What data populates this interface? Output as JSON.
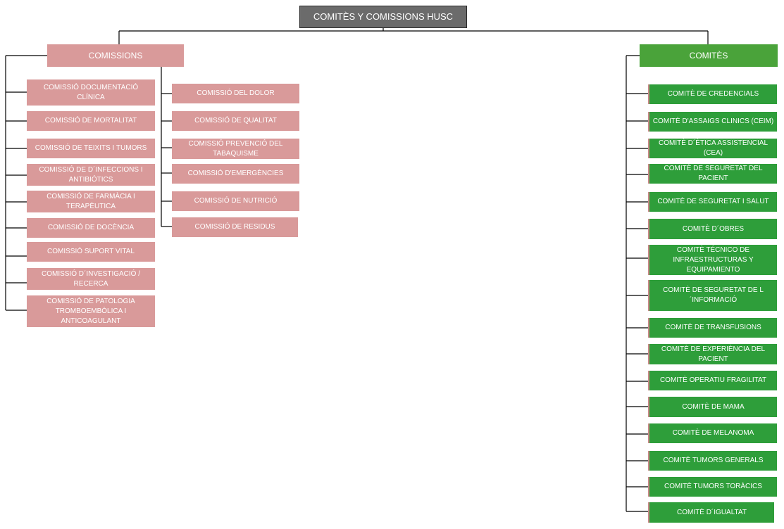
{
  "title": "COMITÈS Y COMISSIONS HUSC",
  "comissions": {
    "label": "COMISSIONS",
    "col1": [
      "COMISSIÓ DOCUMENTACIÓ CLÍNICA",
      "COMISSIÓ DE MORTALITAT",
      "COMISSIÓ DE TEIXITS I TUMORS",
      "COMISSIÓ DE D´INFECCIONS I ANTIBIÓTICS",
      "COMISSIÓ DE FARMÀCIA I TERAPÈUTICA",
      "COMISSIÓ DE DOCÈNCIA",
      "COMISSIÓ SUPORT VITAL",
      "COMISSIÓ D´INVESTIGACIÓ / RECERCA",
      "COMISSIÓ DE PATOLOGIA TROMBOEMBÒLICA I ANTICOAGULANT"
    ],
    "col2": [
      "COMISSIÓ DEL DOLOR",
      "COMISSIÓ DE QUALITAT",
      "COMISSIÓ PREVENCIÓ DEL TABAQUISME",
      "COMISSIÓ D'EMERGÈNCIES",
      "COMISSIÓ DE NUTRICIÓ",
      "COMISSIÓ DE RESIDUS"
    ]
  },
  "comites": {
    "label": "COMITÈS",
    "items": [
      "COMITÈ DE CREDENCIALS",
      "COMITÈ D'ASSAIGS CLINICS (CEIM)",
      "COMITÈ D´ÈTICA ASSISTENCIAL (CEA)",
      "COMITÈ DE SEGURETAT DEL PACIENT",
      "COMITÈ DE SEGURETAT I SALUT",
      "COMITÈ D´OBRES",
      "COMITÈ TÉCNICO DE INFRAESTRUCTURAS Y EQUIPAMIENTO",
      "COMITÈ DE SEGURETAT DE L´INFORMACIÓ",
      "COMITÈ DE TRANSFUSIONS",
      "COMITÈ DE EXPERIÈNCIA DEL PACIENT",
      "COMITÈ OPERATIU FRAGILITAT",
      "COMITÈ DE MAMA",
      "COMITÈ DE MELANOMA",
      "COMITÈ TUMORS GENERALS",
      "COMITÈ TUMORS TORÀCICS",
      "COMITÈ D´IGUALTAT"
    ]
  },
  "colors": {
    "root": "#6b6b6b",
    "comissions": "#d99a9a",
    "comites_header": "#4aa33a",
    "comites": "#2e9e3a",
    "lines": "#000000"
  }
}
